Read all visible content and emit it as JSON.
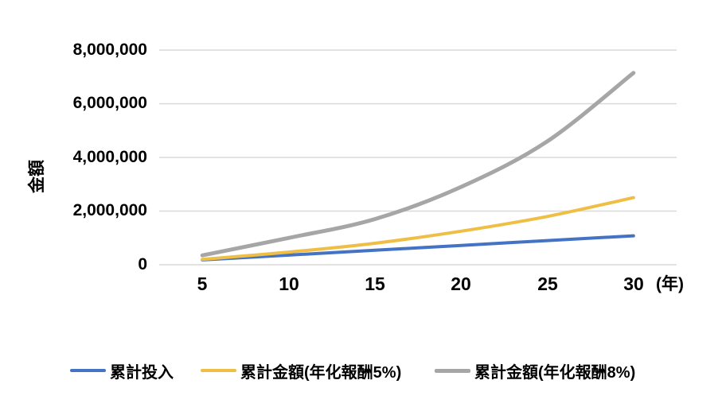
{
  "chart_data": {
    "type": "line",
    "x": [
      5,
      10,
      15,
      20,
      25,
      30
    ],
    "x_tick_labels": [
      "5",
      "10",
      "15",
      "20",
      "25",
      "30"
    ],
    "x_unit_label": "(年)",
    "ylabel": "金額",
    "y_tick_labels_top_to_bottom": [
      "8,000,000",
      "6,000,000",
      "4,000,000",
      "2,000,000",
      "0"
    ],
    "ylim": [
      0,
      8000000
    ],
    "grid_values": [
      0,
      2000000,
      4000000,
      6000000,
      8000000
    ],
    "grid_color": "#D9D9D9",
    "grid": "horizontal",
    "legend_position": "bottom",
    "line_style": "smoothed",
    "series": [
      {
        "name": "累計投入",
        "color": "#4472C4",
        "width": 4,
        "values": [
          180000,
          360000,
          540000,
          720000,
          900000,
          1080000
        ]
      },
      {
        "name": "累計金額(年化報酬5%)",
        "color": "#EFBE45",
        "width": 4,
        "values": [
          200000,
          470000,
          800000,
          1250000,
          1800000,
          2500000
        ]
      },
      {
        "name": "累計金額(年化報酬8%)",
        "color": "#A6A6A6",
        "width": 5,
        "values": [
          350000,
          1000000,
          1700000,
          2900000,
          4600000,
          7150000
        ]
      }
    ]
  }
}
